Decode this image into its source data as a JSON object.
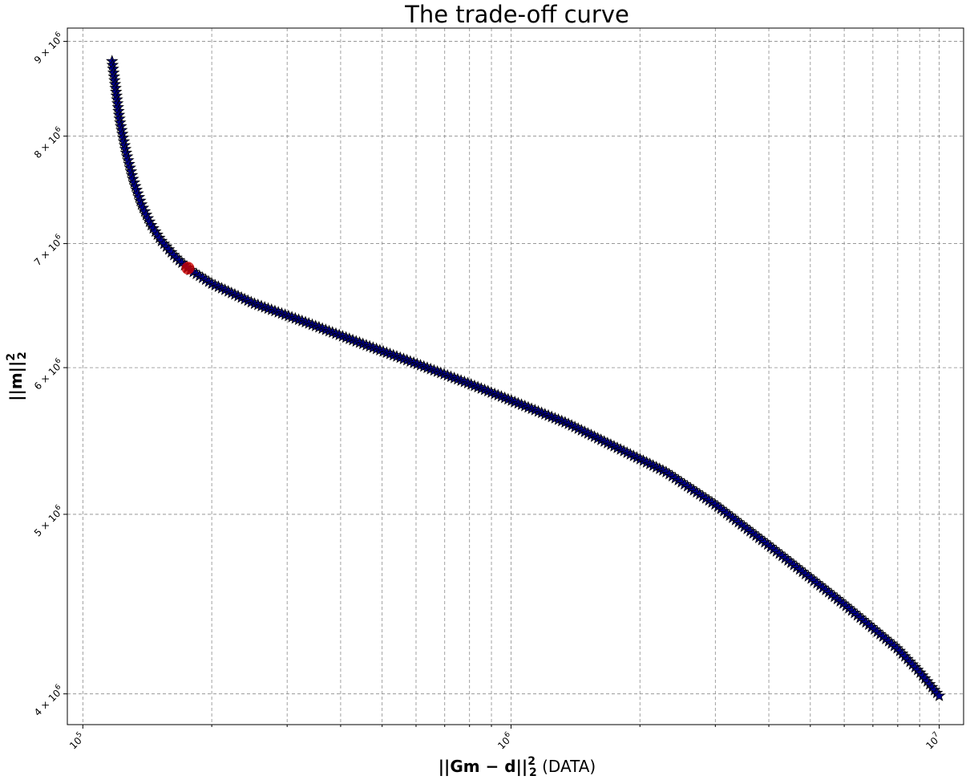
{
  "chart_data": {
    "type": "scatter",
    "title": "The trade-off curve",
    "xlabel": "||Gm − d||²₂ (DATA)",
    "ylabel": "||m||²₂",
    "xscale": "log",
    "yscale": "log",
    "xlim": [
      92000,
      11400000
    ],
    "ylim": [
      3850000,
      9150000
    ],
    "x_major_ticks": [
      100000,
      1000000,
      10000000
    ],
    "x_major_tick_labels": [
      "10^5",
      "10^6",
      "10^7"
    ],
    "y_major_ticks": [
      4000000,
      5000000,
      6000000,
      7000000,
      8000000,
      9000000
    ],
    "y_major_tick_labels": [
      "4 × 10^6",
      "5 × 10^6",
      "6 × 10^6",
      "7 × 10^6",
      "8 × 10^6",
      "9 × 10^6"
    ],
    "grid": true,
    "series": [
      {
        "marker": "star",
        "color": "#00008b",
        "edgecolor": "#000000",
        "curve_points": [
          {
            "x": 117000,
            "y": 8780000
          },
          {
            "x": 119000,
            "y": 8520000
          },
          {
            "x": 122000,
            "y": 8150000
          },
          {
            "x": 126000,
            "y": 7850000
          },
          {
            "x": 131000,
            "y": 7580000
          },
          {
            "x": 137000,
            "y": 7350000
          },
          {
            "x": 144000,
            "y": 7170000
          },
          {
            "x": 152000,
            "y": 7030000
          },
          {
            "x": 164000,
            "y": 6890000
          },
          {
            "x": 177000,
            "y": 6780000
          },
          {
            "x": 200000,
            "y": 6660000
          },
          {
            "x": 250000,
            "y": 6500000
          },
          {
            "x": 330000,
            "y": 6350000
          },
          {
            "x": 450000,
            "y": 6180000
          },
          {
            "x": 600000,
            "y": 6030000
          },
          {
            "x": 800000,
            "y": 5880000
          },
          {
            "x": 1000000,
            "y": 5760000
          },
          {
            "x": 1350000,
            "y": 5600000
          },
          {
            "x": 1800000,
            "y": 5420000
          },
          {
            "x": 2300000,
            "y": 5270000
          },
          {
            "x": 3000000,
            "y": 5060000
          },
          {
            "x": 4000000,
            "y": 4810000
          },
          {
            "x": 5000000,
            "y": 4620000
          },
          {
            "x": 6000000,
            "y": 4470000
          },
          {
            "x": 7000000,
            "y": 4340000
          },
          {
            "x": 8000000,
            "y": 4230000
          },
          {
            "x": 9000000,
            "y": 4110000
          },
          {
            "x": 10000000,
            "y": 3990000
          }
        ]
      }
    ],
    "highlight_point": {
      "x": 176000,
      "y": 6790000,
      "color": "#cc0000"
    }
  }
}
